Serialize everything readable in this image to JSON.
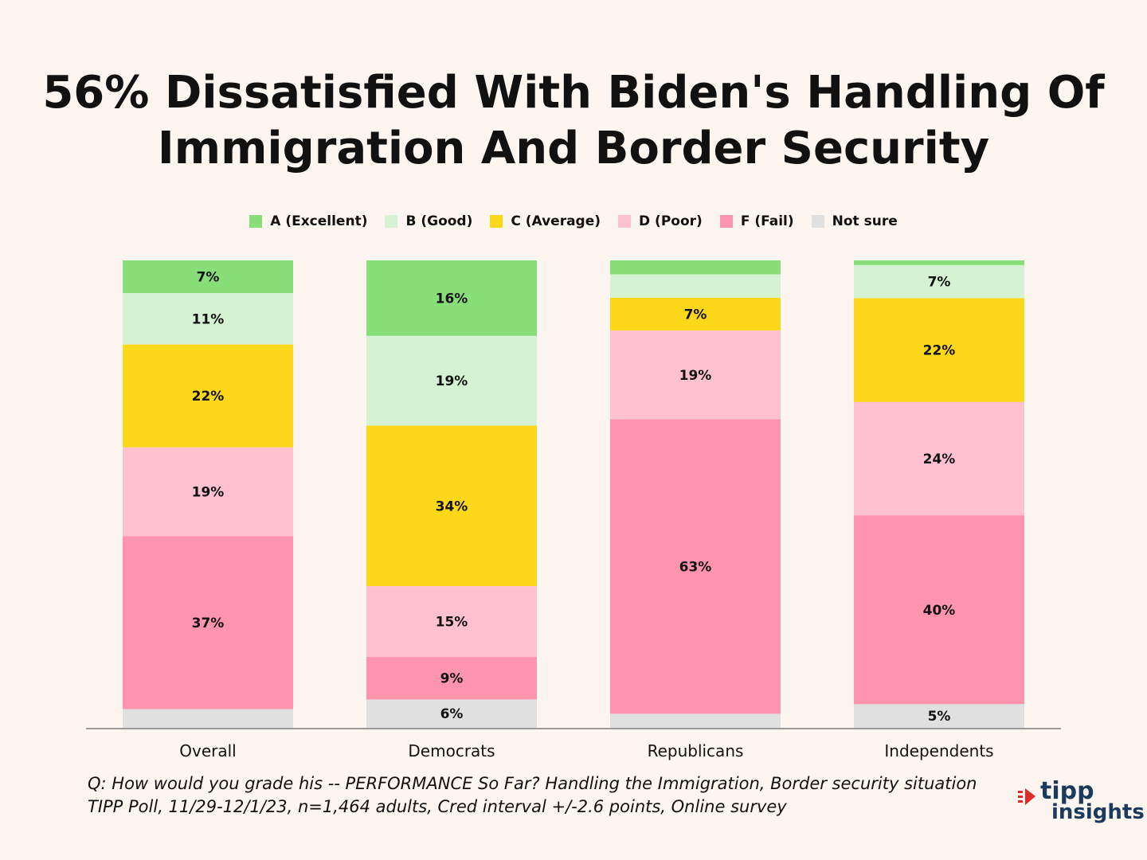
{
  "chart_data": {
    "type": "bar",
    "stacked": true,
    "normalized_to_percent": true,
    "title": "56% Dissatisfied With Biden's Handling Of Immigration And Border Security",
    "title_lines": [
      "56% Dissatisfied With Biden's Handling Of",
      "Immigration And Border Security"
    ],
    "categories": [
      "Overall",
      "Democrats",
      "Republicans",
      "Independents"
    ],
    "series": [
      {
        "name": "A (Excellent)",
        "color": "#88df7a",
        "values": [
          7,
          16,
          3,
          1
        ],
        "labels": [
          "7%",
          "16%",
          "",
          ""
        ]
      },
      {
        "name": "B (Good)",
        "color": "#d5f3d3",
        "values": [
          11,
          19,
          5,
          7
        ],
        "labels": [
          "11%",
          "19%",
          "",
          "7%"
        ]
      },
      {
        "name": "C (Average)",
        "color": "#fcd71a",
        "values": [
          22,
          34,
          7,
          22
        ],
        "labels": [
          "22%",
          "34%",
          "7%",
          "22%"
        ]
      },
      {
        "name": "D (Poor)",
        "color": "#ffc1d0",
        "values": [
          19,
          15,
          19,
          24
        ],
        "labels": [
          "19%",
          "15%",
          "19%",
          "24%"
        ]
      },
      {
        "name": "F (Fail)",
        "color": "#ff94ae",
        "values": [
          37,
          9,
          63,
          40
        ],
        "labels": [
          "37%",
          "9%",
          "63%",
          "40%"
        ]
      },
      {
        "name": "Not sure",
        "color": "#e0e0e0",
        "values": [
          4,
          6,
          3,
          5
        ],
        "labels": [
          "",
          "6%",
          "",
          "5%"
        ]
      }
    ],
    "ylim": [
      0,
      100
    ],
    "legend_position": "top-center",
    "grid": false
  },
  "footnote": {
    "line1": "Q:  How would you grade his -- PERFORMANCE So Far? Handling the Immigration, Border security situation",
    "line2": "TIPP Poll, 11/29-12/1/23, n=1,464 adults, Cred interval +/-2.6 points, Online survey"
  },
  "logo": {
    "word1": "tipp",
    "word2": "insights",
    "color": "#1c3a5e",
    "accent": "#e02b2b"
  },
  "colors": {
    "background": "#fdf6f0",
    "axis": "#9a9a9a"
  }
}
